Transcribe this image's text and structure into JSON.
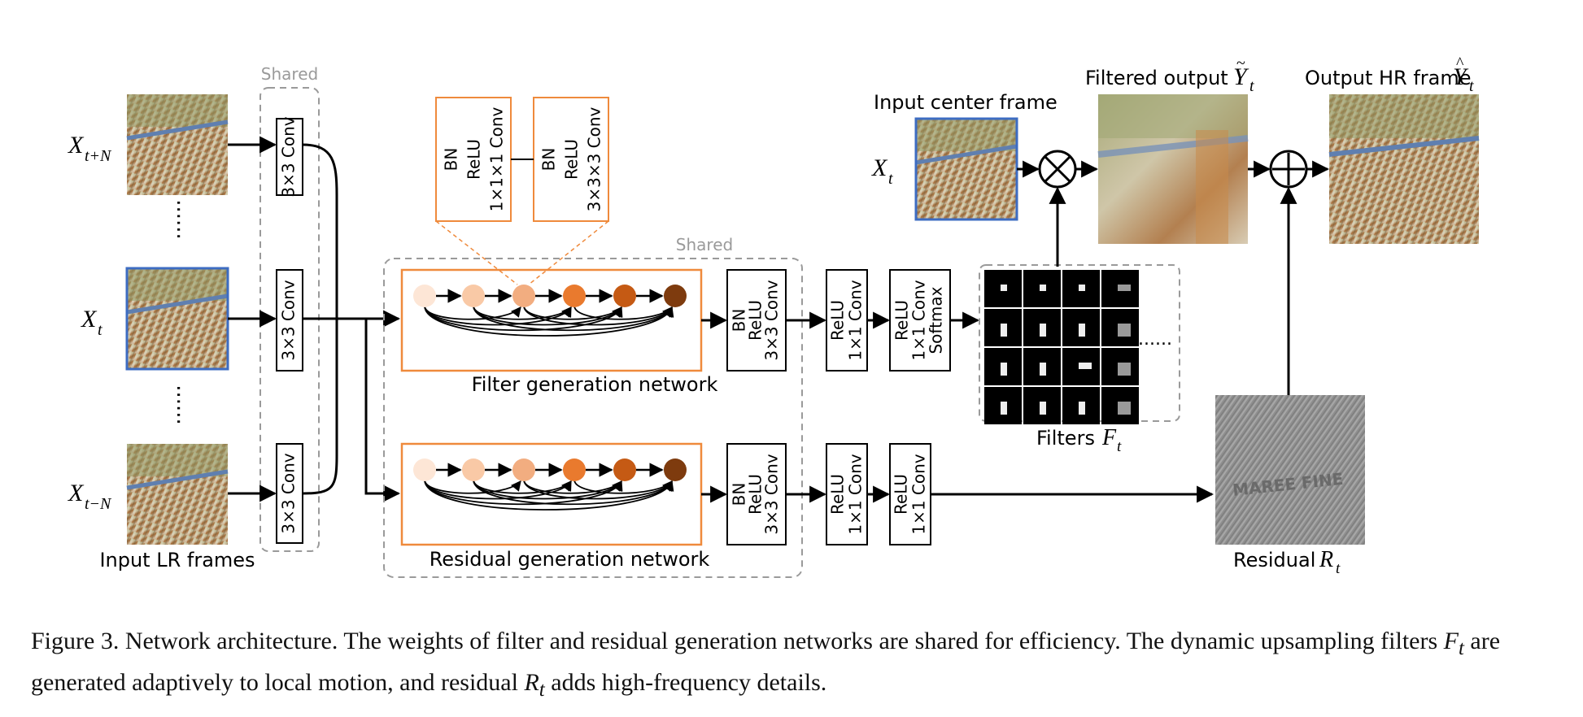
{
  "labels": {
    "shared": "Shared",
    "input_lr_frames": "Input LR frames",
    "filter_generation_network": "Filter generation network",
    "residual_generation_network": "Residual generation network",
    "input_center_frame": "Input center frame",
    "filtered_output": "Filtered output",
    "output_hr_frame": "Output HR frame",
    "filters": "Filters",
    "residual": "Residual",
    "ellipsis_dots": "......"
  },
  "math": {
    "X": "X",
    "t_plus_N": "t+N",
    "t": "t",
    "t_minus_N": "t−N",
    "F": "F",
    "R": "R",
    "Y": "Y"
  },
  "layers": {
    "conv3x3": "3×3 Conv",
    "bn": "BN",
    "relu": "ReLU",
    "conv1x1x1": "1×1×1 Conv",
    "conv3x3x3": "3×3×3 Conv",
    "conv1x1": "1×1 Conv",
    "softmax": "Softmax"
  },
  "colors": {
    "frame_highlight": "#3d6cc2",
    "orange_box": "#ef8a3c",
    "dashed_gray": "#9a9a9a",
    "node_colors": [
      "#fde6d6",
      "#f9c9a6",
      "#f2ad80",
      "#e97a2e",
      "#c55a14",
      "#7e3b0e"
    ]
  },
  "caption": {
    "part1": "Figure 3. Network architecture. The weights of filter and residual generation networks are shared for efficiency. The dynamic upsampling filters ",
    "part2": " are generated adaptively to local motion, and residual ",
    "part3": " adds high-frequency details.",
    "sym_F": "F",
    "sym_R": "R",
    "sub_t": "t"
  }
}
